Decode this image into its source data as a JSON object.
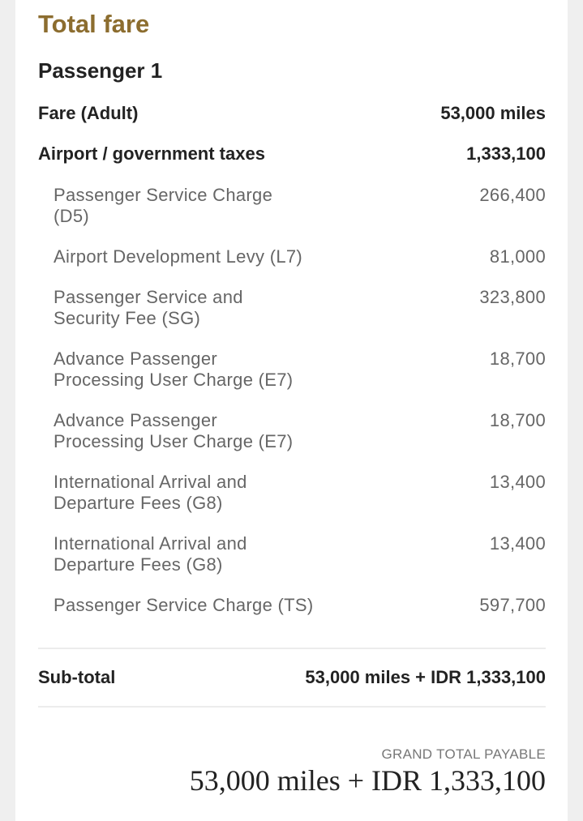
{
  "header": {
    "title": "Total fare"
  },
  "passenger": "Passenger 1",
  "fare": {
    "label": "Fare (Adult)",
    "value": "53,000 miles"
  },
  "taxes": {
    "label": "Airport / government taxes",
    "value": "1,333,100",
    "items": [
      {
        "label": [
          "Passenger Service Charge",
          "(D5)"
        ],
        "value": "266,400"
      },
      {
        "label": [
          "Airport Development Levy (L7)"
        ],
        "value": "81,000"
      },
      {
        "label": [
          "Passenger Service and",
          "Security Fee (SG)"
        ],
        "value": "323,800"
      },
      {
        "label": [
          "Advance Passenger",
          "Processing User Charge (E7)"
        ],
        "value": "18,700"
      },
      {
        "label": [
          "Advance Passenger",
          "Processing User Charge (E7)"
        ],
        "value": "18,700"
      },
      {
        "label": [
          "International Arrival and",
          "Departure Fees (G8)"
        ],
        "value": "13,400"
      },
      {
        "label": [
          "International Arrival and",
          "Departure Fees (G8)"
        ],
        "value": "13,400"
      },
      {
        "label": [
          "Passenger Service Charge (TS)"
        ],
        "value": "597,700"
      }
    ]
  },
  "subtotal": {
    "label": "Sub-total",
    "value": "53,000 miles + IDR 1,333,100"
  },
  "grand_total": {
    "label": "Grand total payable",
    "value": "53,000 miles + IDR 1,333,100"
  }
}
